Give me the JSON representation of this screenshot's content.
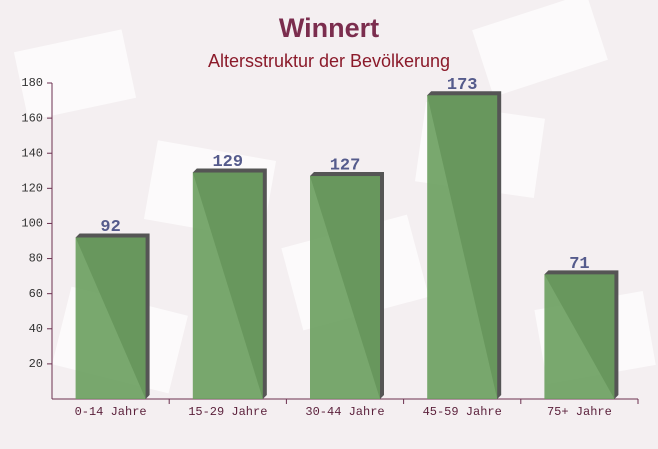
{
  "chart_data": {
    "type": "bar",
    "title": "Winnert",
    "subtitle": "Altersstruktur der Bevölkerung",
    "categories": [
      "0-14 Jahre",
      "15-29 Jahre",
      "30-44 Jahre",
      "45-59 Jahre",
      "75+ Jahre"
    ],
    "values": [
      92,
      129,
      127,
      173,
      71
    ],
    "color": "#6a9f5e",
    "ylim": [
      0,
      180
    ],
    "yticks": [
      20,
      40,
      60,
      80,
      100,
      120,
      140,
      160,
      180
    ],
    "grid": false
  }
}
